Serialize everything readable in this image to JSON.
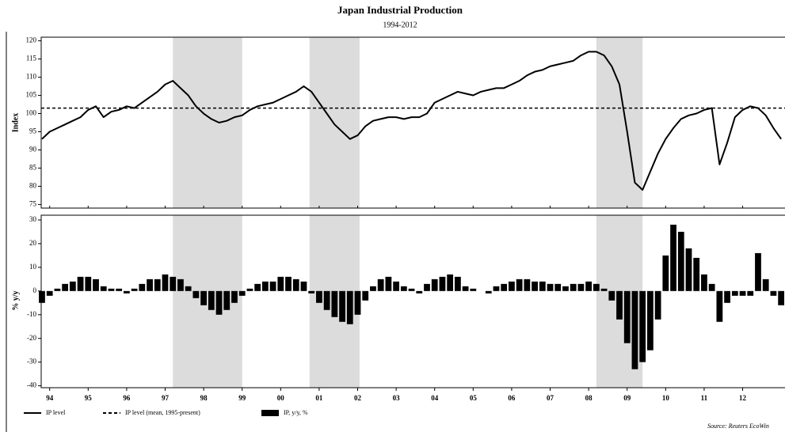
{
  "chart_data": {
    "type": "line",
    "title": "Japan Industrial Production",
    "subtitle": "1994-2012",
    "ylabel": "Index",
    "y2label": "% y/y",
    "source": "Source: Reuters EcoWin",
    "xlim": [
      1994.28,
      2013.6
    ],
    "xticks": [
      {
        "value": 1994.5,
        "label": "94"
      },
      {
        "value": 1995.5,
        "label": "95"
      },
      {
        "value": 1996.5,
        "label": "96"
      },
      {
        "value": 1997.5,
        "label": "97"
      },
      {
        "value": 1998.5,
        "label": "98"
      },
      {
        "value": 1999.5,
        "label": "99"
      },
      {
        "value": 2000.5,
        "label": "00"
      },
      {
        "value": 2001.5,
        "label": "01"
      },
      {
        "value": 2002.5,
        "label": "02"
      },
      {
        "value": 2003.5,
        "label": "03"
      },
      {
        "value": 2004.5,
        "label": "04"
      },
      {
        "value": 2005.5,
        "label": "05"
      },
      {
        "value": 2006.5,
        "label": "06"
      },
      {
        "value": 2007.5,
        "label": "07"
      },
      {
        "value": 2008.5,
        "label": "08"
      },
      {
        "value": 2009.5,
        "label": "09"
      },
      {
        "value": 2010.5,
        "label": "10"
      },
      {
        "value": 2011.5,
        "label": "11"
      },
      {
        "value": 2012.5,
        "label": "12"
      }
    ],
    "ylim": [
      74,
      121
    ],
    "yticks": [
      75,
      80,
      85,
      90,
      95,
      100,
      105,
      110,
      115,
      120
    ],
    "y2lim": [
      -40.8,
      32
    ],
    "y2ticks": [
      -40,
      -30,
      -20,
      -10,
      0,
      10,
      20,
      30
    ],
    "recessions": [
      [
        1997.7,
        1999.5
      ],
      [
        2001.25,
        2002.55
      ],
      [
        2008.7,
        2009.9
      ]
    ],
    "recession_color": "#dcdcdc",
    "x": [
      1994.3,
      1994.5,
      1994.7,
      1994.9,
      1995.1,
      1995.3,
      1995.5,
      1995.7,
      1995.9,
      1996.1,
      1996.3,
      1996.5,
      1996.7,
      1996.9,
      1997.1,
      1997.3,
      1997.5,
      1997.7,
      1997.9,
      1998.1,
      1998.3,
      1998.5,
      1998.7,
      1998.9,
      1999.1,
      1999.3,
      1999.5,
      1999.7,
      1999.9,
      2000.1,
      2000.3,
      2000.5,
      2000.7,
      2000.9,
      2001.1,
      2001.3,
      2001.5,
      2001.7,
      2001.9,
      2002.1,
      2002.3,
      2002.5,
      2002.7,
      2002.9,
      2003.1,
      2003.3,
      2003.5,
      2003.7,
      2003.9,
      2004.1,
      2004.3,
      2004.5,
      2004.7,
      2004.9,
      2005.1,
      2005.3,
      2005.5,
      2005.7,
      2005.9,
      2006.1,
      2006.3,
      2006.5,
      2006.7,
      2006.9,
      2007.1,
      2007.3,
      2007.5,
      2007.7,
      2007.9,
      2008.1,
      2008.3,
      2008.5,
      2008.7,
      2008.9,
      2009.1,
      2009.3,
      2009.5,
      2009.7,
      2009.9,
      2010.1,
      2010.3,
      2010.5,
      2010.7,
      2010.9,
      2011.1,
      2011.3,
      2011.5,
      2011.7,
      2011.9,
      2012.1,
      2012.3,
      2012.5,
      2012.7,
      2012.9,
      2013.1,
      2013.3,
      2013.5
    ],
    "series": [
      {
        "name": "IP level",
        "type": "line",
        "color": "#000000",
        "values": [
          93,
          95,
          96,
          97,
          98,
          99,
          101,
          102,
          99,
          100.5,
          101,
          102,
          101.5,
          103,
          104.5,
          106,
          108,
          109,
          107,
          105,
          102,
          100,
          98.5,
          97.5,
          98,
          99,
          99.5,
          101,
          102,
          102.5,
          103,
          104,
          105,
          106,
          107.5,
          106,
          103,
          100,
          97,
          95,
          93,
          94,
          96.5,
          98,
          98.5,
          99,
          99,
          98.5,
          99,
          99,
          100,
          103,
          104,
          105,
          106,
          105.5,
          105,
          106,
          106.5,
          107,
          107,
          108,
          109,
          110.5,
          111.5,
          112,
          113,
          113.5,
          114,
          114.5,
          116,
          117,
          117,
          116,
          113,
          108,
          95,
          81,
          79,
          84,
          89,
          93,
          96,
          98.5,
          99.5,
          100,
          101,
          101.5,
          86,
          92,
          99,
          101,
          102,
          101.5,
          99.5,
          96,
          93
        ]
      },
      {
        "name": "IP level (mean, 1995-present)",
        "type": "hline",
        "style": "dashed",
        "color": "#000000",
        "value": 101.5
      },
      {
        "name": "IP, y/y, %",
        "type": "bar",
        "axis": "y2",
        "color": "#000000",
        "values": [
          -5,
          -2,
          1,
          3,
          4,
          6,
          6,
          5,
          2,
          1,
          1,
          -1,
          1,
          3,
          5,
          5,
          7,
          6,
          5,
          2,
          -3,
          -6,
          -8,
          -10,
          -8,
          -5,
          -2,
          1,
          3,
          4,
          4,
          6,
          6,
          5,
          4,
          -1,
          -5,
          -8,
          -11,
          -13,
          -14,
          -10,
          -4,
          2,
          5,
          6,
          4,
          2,
          1,
          -1,
          3,
          5,
          6,
          7,
          6,
          2,
          1,
          0,
          -1,
          2,
          3,
          4,
          5,
          5,
          4,
          4,
          3,
          3,
          2,
          3,
          3,
          4,
          3,
          1,
          -4,
          -12,
          -22,
          -33,
          -30,
          -25,
          -12,
          15,
          28,
          25,
          18,
          14,
          7,
          3,
          -13,
          -5,
          -2,
          -2,
          -2,
          16,
          5,
          -2,
          -6
        ]
      }
    ]
  }
}
